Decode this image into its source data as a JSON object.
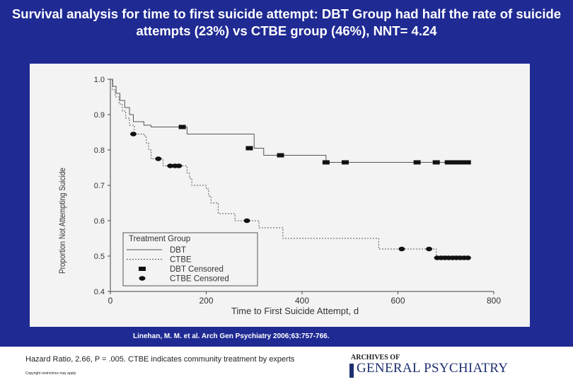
{
  "slide": {
    "title": "Survival analysis for time to first suicide attempt: DBT Group had half the rate of suicide attempts (23%) vs CTBE group (46%), NNT= 4.24",
    "citation": "Linehan, M. M. et al. Arch Gen Psychiatry 2006;63:757-766.",
    "footnote": "Hazard Ratio, 2.66, P = .005. CTBE indicates community treatment by experts",
    "copyright": "Copyright restrictions may apply.",
    "logo_line1": "ARCHIVES OF",
    "logo_line2": "GENERAL PSYCHIATRY"
  },
  "colors": {
    "background": "#1f2a93",
    "panel": "#f3f3f3",
    "line": "#555555"
  },
  "chart_data": {
    "type": "line",
    "xlabel": "Time to First Suicide Attempt, d",
    "ylabel": "Proportion Not Attempting Suicide",
    "xlim": [
      0,
      800
    ],
    "ylim": [
      0.4,
      1.0
    ],
    "xticks": [
      0,
      200,
      400,
      600,
      800
    ],
    "yticks": [
      0.4,
      0.5,
      0.6,
      0.7,
      0.8,
      0.9,
      1.0
    ],
    "legend": {
      "title": "Treatment Group",
      "placement": "bottom-left",
      "entries": [
        "DBT",
        "CTBE",
        "DBT Censored",
        "CTBE Censored"
      ]
    },
    "series": [
      {
        "name": "DBT",
        "style": "solid",
        "steps": [
          [
            0,
            1.0
          ],
          [
            5,
            0.98
          ],
          [
            12,
            0.96
          ],
          [
            20,
            0.94
          ],
          [
            30,
            0.92
          ],
          [
            40,
            0.9
          ],
          [
            48,
            0.88
          ],
          [
            70,
            0.87
          ],
          [
            85,
            0.865
          ],
          [
            160,
            0.845
          ],
          [
            300,
            0.805
          ],
          [
            320,
            0.785
          ],
          [
            450,
            0.765
          ],
          [
            750,
            0.765
          ]
        ],
        "censored": [
          [
            150,
            0.865
          ],
          [
            290,
            0.805
          ],
          [
            355,
            0.785
          ],
          [
            450,
            0.765
          ],
          [
            490,
            0.765
          ],
          [
            640,
            0.765
          ],
          [
            680,
            0.765
          ],
          [
            705,
            0.765
          ],
          [
            715,
            0.765
          ],
          [
            725,
            0.765
          ],
          [
            735,
            0.765
          ],
          [
            745,
            0.765
          ]
        ]
      },
      {
        "name": "CTBE",
        "style": "dashed",
        "steps": [
          [
            0,
            1.0
          ],
          [
            4,
            0.97
          ],
          [
            10,
            0.95
          ],
          [
            18,
            0.93
          ],
          [
            25,
            0.91
          ],
          [
            32,
            0.89
          ],
          [
            40,
            0.87
          ],
          [
            50,
            0.845
          ],
          [
            70,
            0.84
          ],
          [
            75,
            0.82
          ],
          [
            80,
            0.8
          ],
          [
            85,
            0.775
          ],
          [
            110,
            0.755
          ],
          [
            160,
            0.735
          ],
          [
            165,
            0.72
          ],
          [
            170,
            0.7
          ],
          [
            200,
            0.69
          ],
          [
            205,
            0.67
          ],
          [
            210,
            0.65
          ],
          [
            225,
            0.62
          ],
          [
            260,
            0.6
          ],
          [
            310,
            0.58
          ],
          [
            360,
            0.55
          ],
          [
            560,
            0.52
          ],
          [
            680,
            0.5
          ],
          [
            750,
            0.5
          ]
        ],
        "censored": [
          [
            48,
            0.845
          ],
          [
            100,
            0.775
          ],
          [
            125,
            0.755
          ],
          [
            135,
            0.755
          ],
          [
            143,
            0.755
          ],
          [
            285,
            0.6
          ],
          [
            608,
            0.52
          ],
          [
            665,
            0.52
          ],
          [
            682,
            0.495
          ],
          [
            690,
            0.495
          ],
          [
            698,
            0.495
          ],
          [
            706,
            0.495
          ],
          [
            714,
            0.495
          ],
          [
            722,
            0.495
          ],
          [
            730,
            0.495
          ],
          [
            738,
            0.495
          ],
          [
            746,
            0.495
          ]
        ]
      }
    ]
  }
}
